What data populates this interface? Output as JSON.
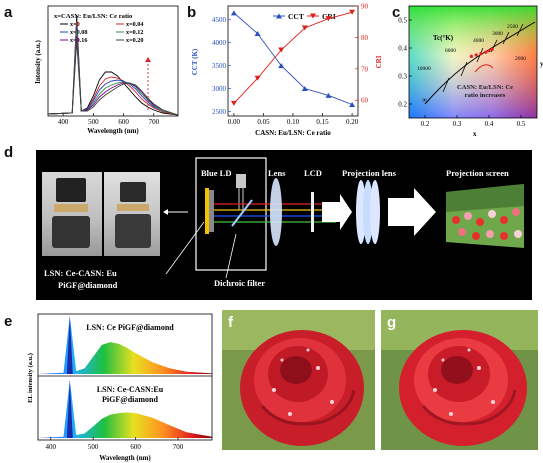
{
  "panel_a": {
    "letter": "a",
    "title": "x=CASN: Eu/LSN: Ce ratio",
    "legend": [
      "x=0",
      "x=0.04",
      "x=0.08",
      "x=0.12",
      "x=0.16",
      "x=0.20"
    ],
    "ylabel": "Intensity (a.u.)",
    "xlabel": "Wavelength (nm)",
    "xticks": [
      "400",
      "500",
      "600",
      "700"
    ],
    "colors": [
      "#000000",
      "#d62728",
      "#1f3fbf",
      "#2e8b57",
      "#8b008b",
      "#2f4f2f"
    ]
  },
  "panel_b": {
    "letter": "b",
    "legend_cct": "CCT",
    "legend_cri": "CRI",
    "ylabel_left": "CCT (K)",
    "ylabel_right": "CRI",
    "xlabel": "CASN: Eu/LSN: Ce ratio",
    "yticks_left": [
      "2500",
      "3000",
      "3500",
      "4000",
      "4500"
    ],
    "yticks_right": [
      "60",
      "70",
      "80",
      "90"
    ],
    "xticks": [
      "0.00",
      "0.05",
      "0.10",
      "0.15",
      "0.20"
    ],
    "cct_color": "#2a4fbf",
    "cri_color": "#e0201c"
  },
  "panel_c": {
    "letter": "c",
    "label_tc": "Tc(°K)",
    "temps": [
      "10000",
      "6000",
      "4000",
      "3000",
      "2500",
      "2000",
      "∞"
    ],
    "annotation_line1": "CASN: Eu/LSN: Ce",
    "annotation_line2": "ratio increases",
    "xlabel": "x",
    "ylabel": "y",
    "xticks": [
      "0.2",
      "0.3",
      "0.4",
      "0.5"
    ],
    "yticks": [
      "0.2",
      "0.3",
      "0.4",
      "0.5"
    ]
  },
  "panel_d": {
    "letter": "d",
    "blue_ld": "Blue LD",
    "lens": "Lens",
    "lcd": "LCD",
    "projection_lens": "Projection lens",
    "projection_screen": "Projection screen",
    "dichroic": "Dichroic filter",
    "sample_line1": "LSN: Ce-CASN: Eu",
    "sample_line2": "PiGF@diamond"
  },
  "panel_e": {
    "letter": "e",
    "top_label": "LSN: Ce PiGF@diamond",
    "bottom_line1": "LSN: Ce-CASN:Eu",
    "bottom_line2": "PiGF@diamond",
    "ylabel": "EL intensity (a.u.)",
    "xlabel": "Wavelength (nm)",
    "xticks": [
      "400",
      "500",
      "600",
      "700"
    ]
  },
  "panel_f": {
    "letter": "f"
  },
  "panel_g": {
    "letter": "g"
  },
  "chart_data": [
    {
      "type": "line",
      "id": "panel-a",
      "title": "x=CASN: Eu/LSN: Ce ratio",
      "xlabel": "Wavelength (nm)",
      "ylabel": "Intensity (a.u.)",
      "xlim": [
        350,
        780
      ],
      "series": [
        {
          "name": "x=0",
          "color": "#000000",
          "x": [
            350,
            430,
            445,
            460,
            480,
            500,
            520,
            540,
            560,
            580,
            600,
            620,
            640,
            660,
            680,
            700,
            730,
            780
          ],
          "y": [
            0.02,
            0.03,
            1.0,
            0.05,
            0.08,
            0.2,
            0.36,
            0.44,
            0.44,
            0.4,
            0.33,
            0.26,
            0.19,
            0.13,
            0.09,
            0.06,
            0.03,
            0.01
          ]
        },
        {
          "name": "x=0.04",
          "color": "#d62728",
          "x": [
            350,
            430,
            445,
            460,
            480,
            500,
            520,
            540,
            560,
            580,
            600,
            620,
            640,
            660,
            680,
            700,
            730,
            780
          ],
          "y": [
            0.02,
            0.03,
            0.95,
            0.05,
            0.07,
            0.17,
            0.3,
            0.37,
            0.39,
            0.38,
            0.35,
            0.3,
            0.24,
            0.17,
            0.12,
            0.08,
            0.04,
            0.01
          ]
        },
        {
          "name": "x=0.08",
          "color": "#1f3fbf",
          "x": [
            350,
            430,
            445,
            460,
            480,
            500,
            520,
            540,
            560,
            580,
            600,
            620,
            640,
            660,
            680,
            700,
            730,
            780
          ],
          "y": [
            0.02,
            0.03,
            0.9,
            0.05,
            0.07,
            0.15,
            0.26,
            0.32,
            0.35,
            0.36,
            0.35,
            0.32,
            0.27,
            0.2,
            0.14,
            0.09,
            0.05,
            0.01
          ]
        },
        {
          "name": "x=0.12",
          "color": "#2e8b57",
          "x": [
            350,
            430,
            445,
            460,
            480,
            500,
            520,
            540,
            560,
            580,
            600,
            620,
            640,
            660,
            680,
            700,
            730,
            780
          ],
          "y": [
            0.02,
            0.03,
            0.85,
            0.05,
            0.06,
            0.13,
            0.22,
            0.28,
            0.31,
            0.33,
            0.34,
            0.33,
            0.29,
            0.22,
            0.16,
            0.1,
            0.05,
            0.01
          ]
        },
        {
          "name": "x=0.16",
          "color": "#8b008b",
          "x": [
            350,
            430,
            445,
            460,
            480,
            500,
            520,
            540,
            560,
            580,
            600,
            620,
            640,
            660,
            680,
            700,
            730,
            780
          ],
          "y": [
            0.02,
            0.03,
            0.8,
            0.05,
            0.06,
            0.11,
            0.19,
            0.24,
            0.28,
            0.31,
            0.33,
            0.33,
            0.3,
            0.24,
            0.17,
            0.11,
            0.06,
            0.01
          ]
        },
        {
          "name": "x=0.20",
          "color": "#2f4f2f",
          "x": [
            350,
            430,
            445,
            460,
            480,
            500,
            520,
            540,
            560,
            580,
            600,
            620,
            640,
            660,
            680,
            700,
            730,
            780
          ],
          "y": [
            0.02,
            0.03,
            0.75,
            0.05,
            0.05,
            0.09,
            0.16,
            0.21,
            0.25,
            0.29,
            0.32,
            0.33,
            0.31,
            0.25,
            0.18,
            0.12,
            0.06,
            0.01
          ]
        }
      ]
    },
    {
      "type": "line",
      "id": "panel-b",
      "xlabel": "CASN: Eu/LSN: Ce ratio",
      "ylabel": "CCT (K)",
      "ylabel_right": "CRI",
      "xlim": [
        -0.01,
        0.21
      ],
      "ylim": [
        2400,
        4800
      ],
      "ylim_right": [
        55,
        90
      ],
      "series": [
        {
          "name": "CCT",
          "axis": "left",
          "marker": "triangle",
          "x": [
            0,
            0.04,
            0.08,
            0.12,
            0.16,
            0.2
          ],
          "y": [
            4650,
            4200,
            3500,
            3000,
            2850,
            2650
          ]
        },
        {
          "name": "CRI",
          "axis": "right",
          "marker": "triangle-down",
          "x": [
            0,
            0.04,
            0.08,
            0.12,
            0.16,
            0.2
          ],
          "y": [
            59,
            67,
            76,
            83,
            86,
            88
          ]
        }
      ]
    },
    {
      "type": "scatter",
      "id": "panel-c",
      "xlabel": "x",
      "ylabel": "y",
      "xlim": [
        0.15,
        0.55
      ],
      "ylim": [
        0.15,
        0.55
      ],
      "series": [
        {
          "name": "",
          "x": [
            0.345,
            0.36,
            0.375,
            0.39,
            0.4,
            0.41
          ],
          "y": [
            0.37,
            0.375,
            0.38,
            0.385,
            0.39,
            0.395
          ]
        }
      ]
    },
    {
      "type": "area",
      "id": "panel-e",
      "xlabel": "Wavelength (nm)",
      "ylabel": "EL intensity (a.u.)",
      "xlim": [
        370,
        780
      ],
      "series": [
        {
          "name": "LSN: Ce PiGF@diamond",
          "x": [
            370,
            430,
            445,
            460,
            480,
            500,
            520,
            540,
            560,
            580,
            600,
            640,
            680,
            720,
            780
          ],
          "y": [
            0,
            0.02,
            1.0,
            0.05,
            0.1,
            0.3,
            0.5,
            0.55,
            0.52,
            0.45,
            0.36,
            0.2,
            0.1,
            0.04,
            0.01
          ]
        },
        {
          "name": "LSN: Ce-CASN:Eu PiGF@diamond",
          "x": [
            370,
            430,
            445,
            460,
            480,
            500,
            520,
            540,
            560,
            580,
            600,
            640,
            680,
            720,
            780
          ],
          "y": [
            0,
            0.02,
            1.0,
            0.05,
            0.08,
            0.2,
            0.33,
            0.4,
            0.43,
            0.44,
            0.43,
            0.35,
            0.22,
            0.1,
            0.02
          ]
        }
      ]
    }
  ]
}
